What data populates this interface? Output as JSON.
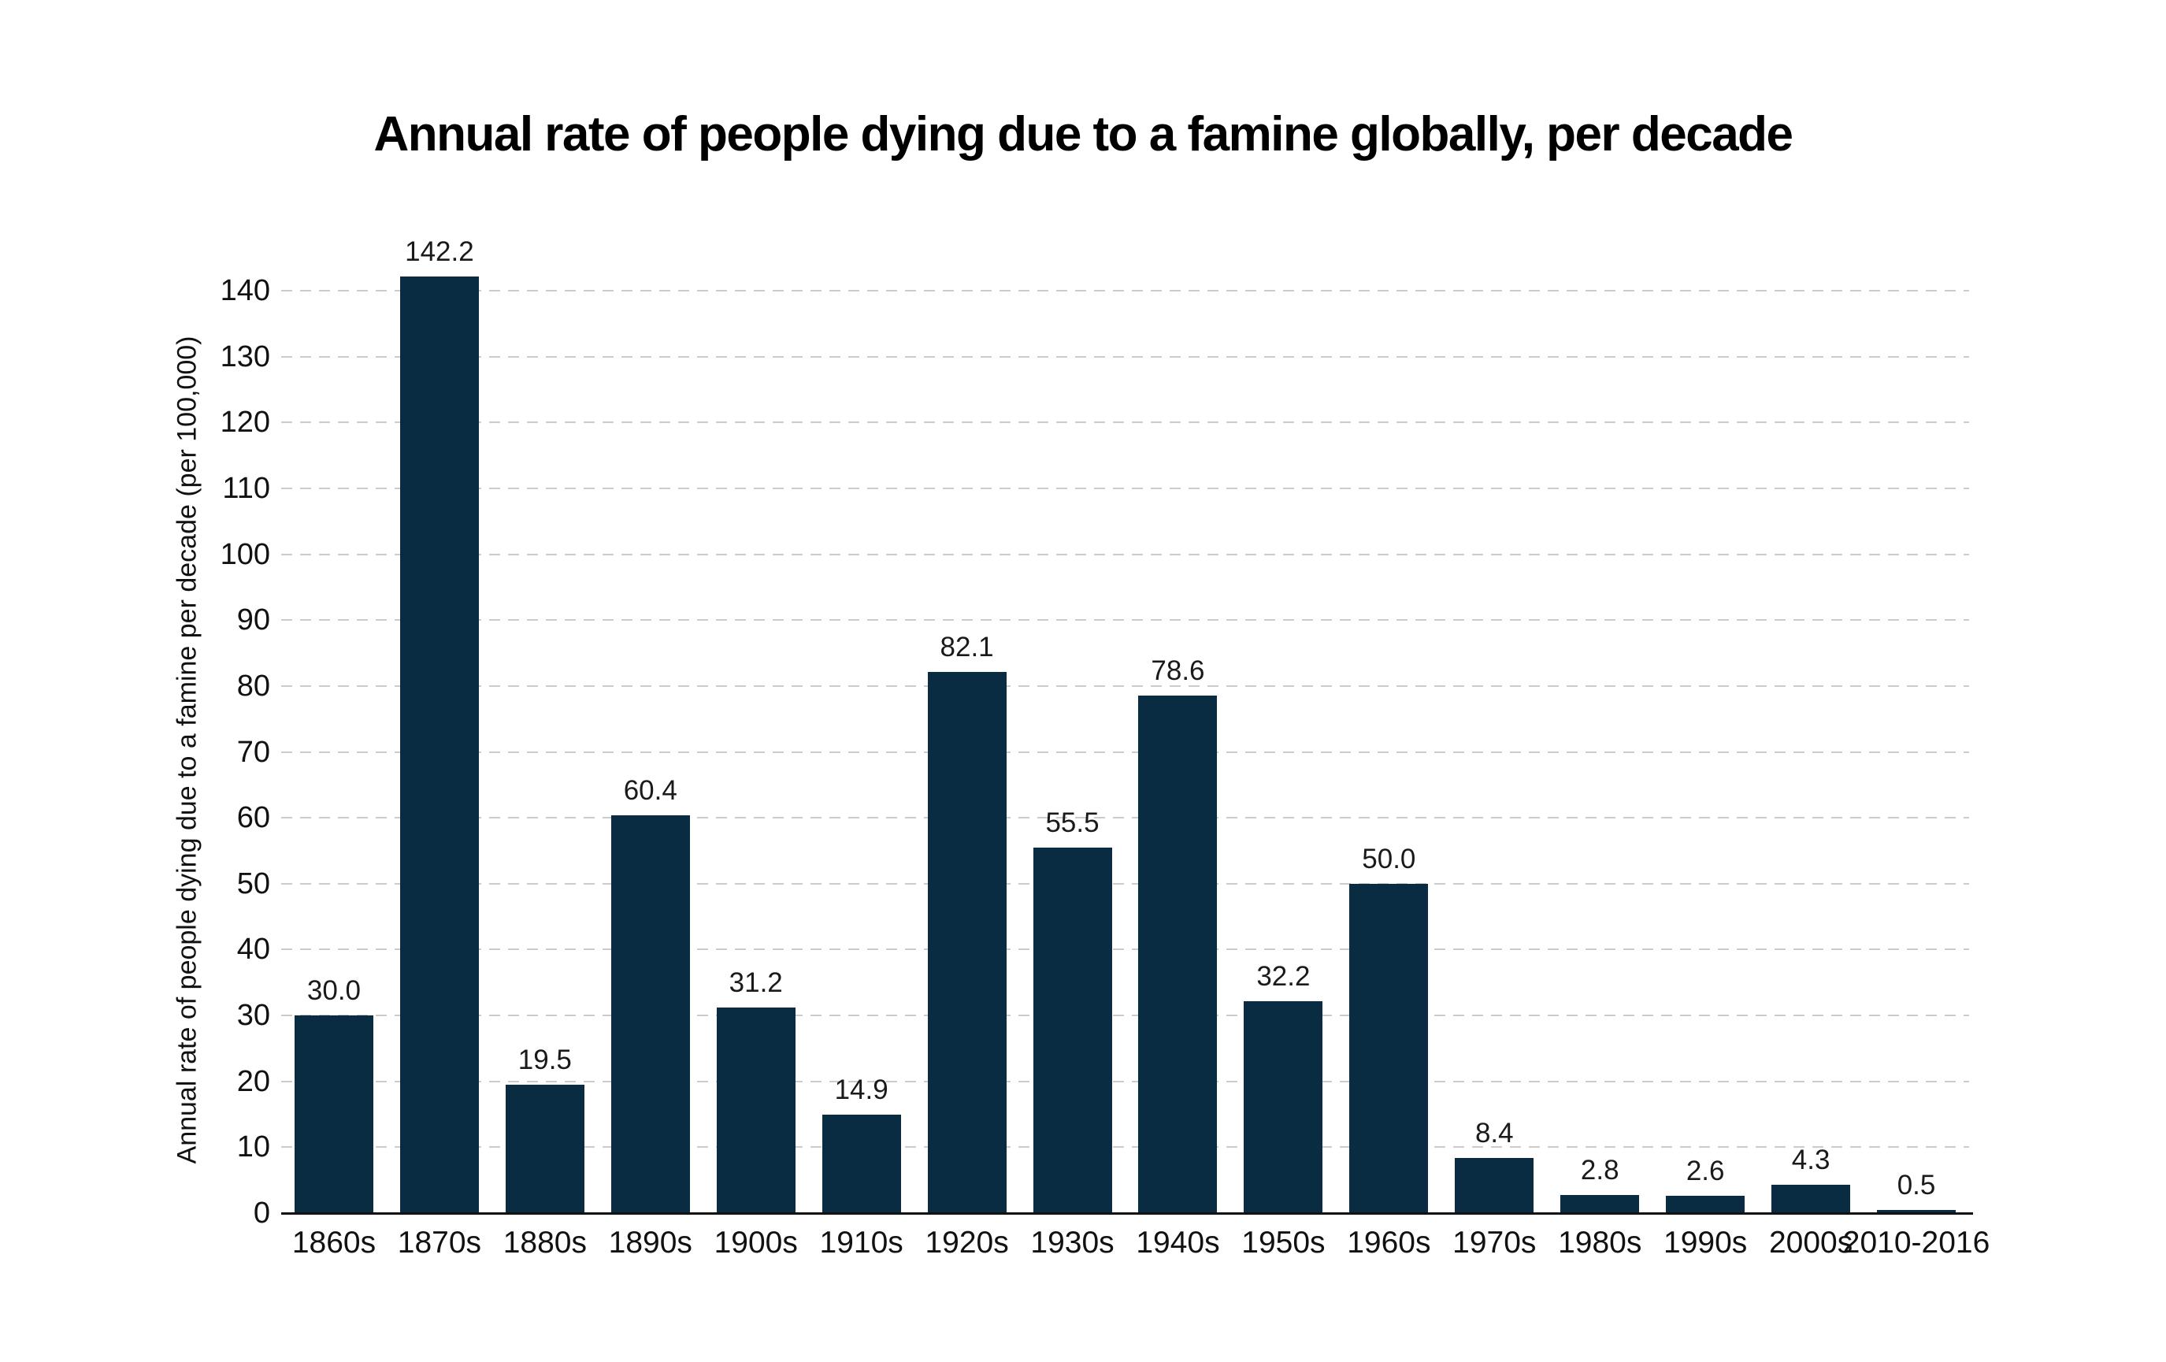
{
  "title": "Annual rate of people dying due to a famine globally, per decade",
  "colors": {
    "bar": "#0a2c42",
    "gridline": "#cccccc",
    "axis_line": "#111111",
    "text": "#111111",
    "background": "#ffffff"
  },
  "chart_data": {
    "type": "bar",
    "title": "Annual rate of people dying due to a famine globally, per decade",
    "xlabel": "",
    "ylabel": "Annual rate of people dying due to a famine per decade (per 100,000)",
    "categories": [
      "1860s",
      "1870s",
      "1880s",
      "1890s",
      "1900s",
      "1910s",
      "1920s",
      "1930s",
      "1940s",
      "1950s",
      "1960s",
      "1970s",
      "1980s",
      "1990s",
      "2000s",
      "2010-2016"
    ],
    "values": [
      30.0,
      142.2,
      19.5,
      60.4,
      31.2,
      14.9,
      82.1,
      55.5,
      78.6,
      32.2,
      50.0,
      8.4,
      2.8,
      2.6,
      4.3,
      0.5
    ],
    "value_labels": [
      "30.0",
      "142.2",
      "19.5",
      "60.4",
      "31.2",
      "14.9",
      "82.1",
      "55.5",
      "78.6",
      "32.2",
      "50.0",
      "8.4",
      "2.8",
      "2.6",
      "4.3",
      "0.5"
    ],
    "yticks": [
      0,
      10,
      20,
      30,
      40,
      50,
      60,
      70,
      80,
      90,
      100,
      110,
      120,
      130,
      140
    ],
    "ylim": [
      0,
      161.4
    ],
    "grid": "horizontal-dashed",
    "legend": "none",
    "bar_color": "#0a2c42"
  }
}
